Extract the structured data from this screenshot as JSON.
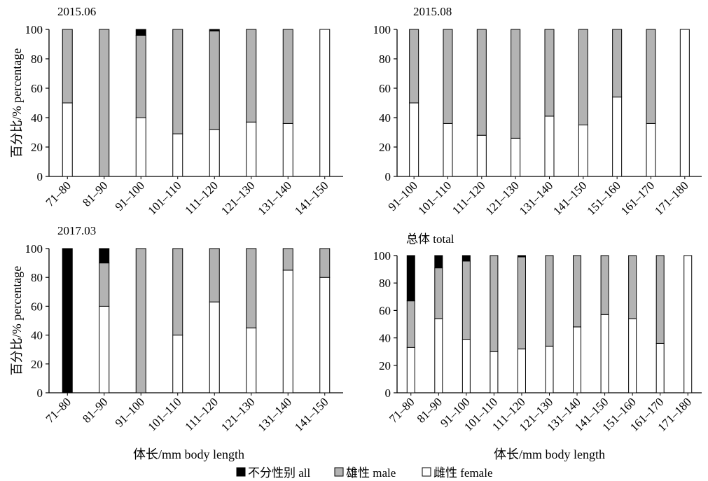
{
  "chart_data": [
    {
      "type": "bar",
      "stacked": true,
      "title": "2015.06",
      "ylabel": "百分比/% percentage",
      "xlabel": "",
      "ylim": [
        0,
        100
      ],
      "yticks": [
        0,
        20,
        40,
        60,
        80,
        100
      ],
      "categories": [
        "71–80",
        "81–90",
        "91–100",
        "101–110",
        "111–120",
        "121–130",
        "131–140",
        "141–150"
      ],
      "series": [
        {
          "name": "雌性 female",
          "values": [
            50,
            0,
            40,
            29,
            32,
            37,
            36,
            100
          ]
        },
        {
          "name": "雄性 male",
          "values": [
            50,
            100,
            56,
            71,
            67,
            63,
            64,
            0
          ]
        },
        {
          "name": "不分性别 all",
          "values": [
            0,
            0,
            4,
            0,
            1,
            0,
            0,
            0
          ]
        }
      ]
    },
    {
      "type": "bar",
      "stacked": true,
      "title": "2015.08",
      "ylabel": "",
      "xlabel": "",
      "ylim": [
        0,
        100
      ],
      "yticks": [
        0,
        20,
        40,
        60,
        80,
        100
      ],
      "categories": [
        "91–100",
        "101–110",
        "111–120",
        "121–130",
        "131–140",
        "141–150",
        "151–160",
        "161–170",
        "171–180"
      ],
      "series": [
        {
          "name": "雌性 female",
          "values": [
            50,
            36,
            28,
            26,
            41,
            35,
            54,
            36,
            100
          ]
        },
        {
          "name": "雄性 male",
          "values": [
            50,
            64,
            72,
            74,
            59,
            65,
            46,
            64,
            0
          ]
        },
        {
          "name": "不分性别 all",
          "values": [
            0,
            0,
            0,
            0,
            0,
            0,
            0,
            0,
            0
          ]
        }
      ]
    },
    {
      "type": "bar",
      "stacked": true,
      "title": "2017.03",
      "ylabel": "百分比/% percentage",
      "xlabel": "体长/mm body length",
      "ylim": [
        0,
        100
      ],
      "yticks": [
        0,
        20,
        40,
        60,
        80,
        100
      ],
      "categories": [
        "71–80",
        "81–90",
        "91–100",
        "101–110",
        "111–120",
        "121–130",
        "131–140",
        "141–150"
      ],
      "series": [
        {
          "name": "雌性 female",
          "values": [
            0,
            60,
            0,
            40,
            63,
            45,
            85,
            80
          ]
        },
        {
          "name": "雄性 male",
          "values": [
            0,
            30,
            100,
            60,
            37,
            55,
            15,
            20
          ]
        },
        {
          "name": "不分性别 all",
          "values": [
            100,
            10,
            0,
            0,
            0,
            0,
            0,
            0
          ]
        }
      ]
    },
    {
      "type": "bar",
      "stacked": true,
      "title": "总体 total",
      "ylabel": "",
      "xlabel": "体长/mm body length",
      "ylim": [
        0,
        100
      ],
      "yticks": [
        0,
        20,
        40,
        60,
        80,
        100
      ],
      "categories": [
        "71–80",
        "81–90",
        "91–100",
        "101–110",
        "111–120",
        "121–130",
        "131–140",
        "141–150",
        "151–160",
        "161–170",
        "171–180"
      ],
      "series": [
        {
          "name": "雌性 female",
          "values": [
            33,
            54,
            39,
            30,
            32,
            34,
            48,
            57,
            54,
            36,
            100
          ]
        },
        {
          "name": "雄性 male",
          "values": [
            34,
            37,
            57,
            70,
            67,
            66,
            52,
            43,
            46,
            64,
            0
          ]
        },
        {
          "name": "不分性别 all",
          "values": [
            33,
            9,
            4,
            0,
            1,
            0,
            0,
            0,
            0,
            0,
            0
          ]
        }
      ]
    }
  ],
  "legend": {
    "placement": "bottom-center",
    "items": [
      {
        "key": "all",
        "label": "不分性别 all",
        "color": "#000000"
      },
      {
        "key": "male",
        "label": "雄性 male",
        "color": "#b3b3b3"
      },
      {
        "key": "female",
        "label": "雌性 female",
        "color": "#ffffff"
      }
    ]
  }
}
